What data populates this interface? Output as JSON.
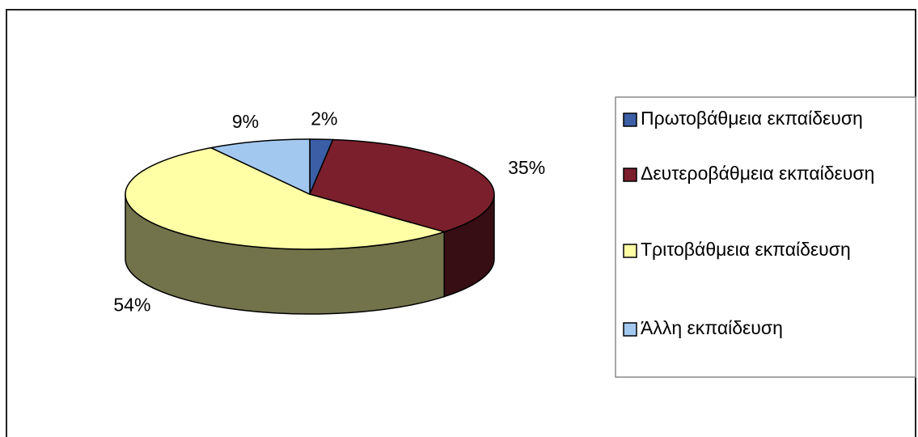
{
  "chart_data": {
    "type": "pie3d",
    "categories": [
      "Πρωτοβάθμεια εκπαίδευση",
      "Δευτεροβάθμεια εκπαίδευση",
      "Τριτοβάθμεια εκπαίδευση",
      "Άλλη εκπαίδευση"
    ],
    "values": [
      2,
      35,
      54,
      9
    ],
    "value_labels": [
      "2%",
      "35%",
      "54%",
      "9%"
    ],
    "colors": [
      "#3b5ea6",
      "#7b1f2c",
      "#ffffa6",
      "#a3c8f0"
    ],
    "legend": "right"
  }
}
